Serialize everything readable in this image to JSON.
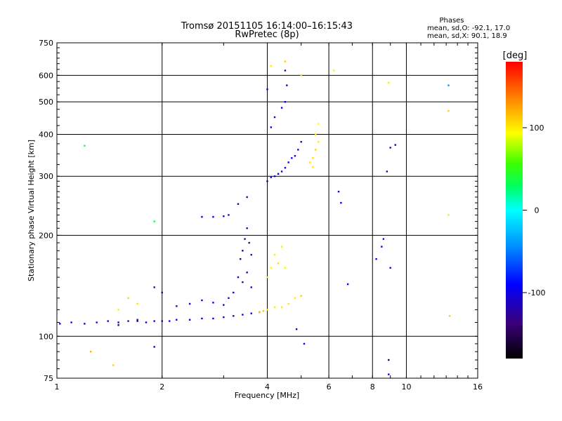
{
  "chart_data": {
    "type": "scatter",
    "title": "Tromsø 20151105 16:14:00–16:15:43",
    "subtitle": "RwPretec (8p)",
    "xlabel": "Frequency [MHz]",
    "ylabel": "Stationary phase Virtual Height [km]",
    "x_scale": "log",
    "y_scale": "log",
    "xlim": [
      1,
      16
    ],
    "ylim": [
      75,
      750
    ],
    "x_ticks": [
      1,
      2,
      4,
      6,
      8,
      10,
      16
    ],
    "y_ticks": [
      75,
      100,
      200,
      300,
      400,
      500,
      600,
      750
    ],
    "grid": true,
    "phase_info": {
      "heading": "Phases",
      "line_o": "mean, sd,O: -92.1, 17.0",
      "line_x": "mean, sd,X:  90.1, 18.9"
    },
    "colorbar": {
      "label": "[deg]",
      "range": [
        -180,
        180
      ],
      "ticks": [
        100,
        0,
        -100
      ],
      "tick_labels": [
        "100",
        "0",
        "-100"
      ]
    },
    "series": [
      {
        "points": [
          [
            1.02,
            109,
            -100
          ],
          [
            1.1,
            110,
            -100
          ],
          [
            1.2,
            109,
            -100
          ],
          [
            1.3,
            110,
            -100
          ],
          [
            1.4,
            111,
            -100
          ],
          [
            1.5,
            110,
            -100
          ],
          [
            1.6,
            111,
            -100
          ],
          [
            1.7,
            111,
            -100
          ],
          [
            1.8,
            110,
            -100
          ],
          [
            1.9,
            111,
            -100
          ],
          [
            2.0,
            111,
            -100
          ],
          [
            2.1,
            111,
            -100
          ],
          [
            2.2,
            112,
            -100
          ],
          [
            2.4,
            112,
            -100
          ],
          [
            2.6,
            113,
            -100
          ],
          [
            2.8,
            113,
            -100
          ],
          [
            3.0,
            114,
            -100
          ],
          [
            3.2,
            115,
            -100
          ],
          [
            3.4,
            116,
            -100
          ],
          [
            3.6,
            117,
            -100
          ],
          [
            3.8,
            118,
            -100
          ],
          [
            2.2,
            123,
            -105
          ],
          [
            2.4,
            125,
            -95
          ],
          [
            2.6,
            128,
            -90
          ],
          [
            2.8,
            126,
            -95
          ],
          [
            3.0,
            124,
            -100
          ],
          [
            3.1,
            130,
            -100
          ],
          [
            3.2,
            135,
            -95
          ],
          [
            3.3,
            150,
            -110
          ],
          [
            3.35,
            170,
            -120
          ],
          [
            3.4,
            180,
            -125
          ],
          [
            3.45,
            195,
            -110
          ],
          [
            3.5,
            210,
            -120
          ],
          [
            3.55,
            190,
            -130
          ],
          [
            3.6,
            175,
            -120
          ],
          [
            3.5,
            155,
            -115
          ],
          [
            3.4,
            145,
            -120
          ],
          [
            3.6,
            140,
            -110
          ],
          [
            2.6,
            227,
            -110
          ],
          [
            2.8,
            227,
            -100
          ],
          [
            3.0,
            228,
            -90
          ],
          [
            3.1,
            230,
            -100
          ],
          [
            3.3,
            248,
            -130
          ],
          [
            3.5,
            260,
            -120
          ],
          [
            4.0,
            290,
            -100
          ],
          [
            4.1,
            298,
            -105
          ],
          [
            4.2,
            300,
            -100
          ],
          [
            4.3,
            305,
            -95
          ],
          [
            4.4,
            310,
            -100
          ],
          [
            4.5,
            318,
            -100
          ],
          [
            4.6,
            330,
            -100
          ],
          [
            4.7,
            340,
            -95
          ],
          [
            4.8,
            345,
            -100
          ],
          [
            4.9,
            360,
            -105
          ],
          [
            5.0,
            380,
            -100
          ],
          [
            4.1,
            420,
            -100
          ],
          [
            4.2,
            450,
            -105
          ],
          [
            4.4,
            480,
            -100
          ],
          [
            4.5,
            500,
            -95
          ],
          [
            4.55,
            560,
            -100
          ],
          [
            4.5,
            620,
            -110
          ],
          [
            4.0,
            545,
            -90
          ],
          [
            1.5,
            108,
            -150
          ],
          [
            1.7,
            112,
            -140
          ],
          [
            1.9,
            140,
            -130
          ],
          [
            2.0,
            135,
            -130
          ],
          [
            4.0,
            120,
            100
          ],
          [
            4.2,
            122,
            100
          ],
          [
            4.4,
            122,
            100
          ],
          [
            4.6,
            125,
            105
          ],
          [
            4.8,
            130,
            100
          ],
          [
            5.0,
            132,
            110
          ],
          [
            4.0,
            150,
            100
          ],
          [
            4.1,
            160,
            95
          ],
          [
            4.2,
            175,
            100
          ],
          [
            4.3,
            165,
            105
          ],
          [
            4.4,
            185,
            100
          ],
          [
            4.5,
            160,
            95
          ],
          [
            5.3,
            330,
            100
          ],
          [
            5.4,
            340,
            105
          ],
          [
            5.5,
            360,
            110
          ],
          [
            5.6,
            380,
            100
          ],
          [
            5.5,
            400,
            105
          ],
          [
            5.6,
            430,
            95
          ],
          [
            5.4,
            320,
            100
          ],
          [
            1.6,
            130,
            110
          ],
          [
            1.7,
            125,
            105
          ],
          [
            1.5,
            120,
            100
          ],
          [
            3.8,
            118,
            110
          ],
          [
            3.9,
            119,
            115
          ],
          [
            1.2,
            370,
            40
          ],
          [
            1.9,
            220,
            30
          ],
          [
            4.1,
            640,
            100
          ],
          [
            4.5,
            660,
            110
          ],
          [
            5.0,
            600,
            105
          ],
          [
            6.2,
            620,
            100
          ],
          [
            8.2,
            170,
            -100
          ],
          [
            8.5,
            185,
            -110
          ],
          [
            8.6,
            195,
            -90
          ],
          [
            8.8,
            310,
            -100
          ],
          [
            9.0,
            365,
            -100
          ],
          [
            9.3,
            372,
            -100
          ],
          [
            8.9,
            570,
            100
          ],
          [
            13.2,
            560,
            -40
          ],
          [
            13.2,
            470,
            110
          ],
          [
            13.2,
            230,
            100
          ],
          [
            13.3,
            115,
            110
          ],
          [
            8.9,
            85,
            -150
          ],
          [
            8.9,
            77,
            -100
          ],
          [
            9.0,
            160,
            -100
          ],
          [
            6.4,
            270,
            -110
          ],
          [
            6.5,
            250,
            -100
          ],
          [
            6.8,
            143,
            -100
          ],
          [
            5.1,
            95,
            -100
          ],
          [
            1.9,
            93,
            -100
          ],
          [
            1.25,
            90,
            120
          ],
          [
            1.45,
            82,
            110
          ],
          [
            4.85,
            105,
            -110
          ]
        ]
      }
    ]
  }
}
